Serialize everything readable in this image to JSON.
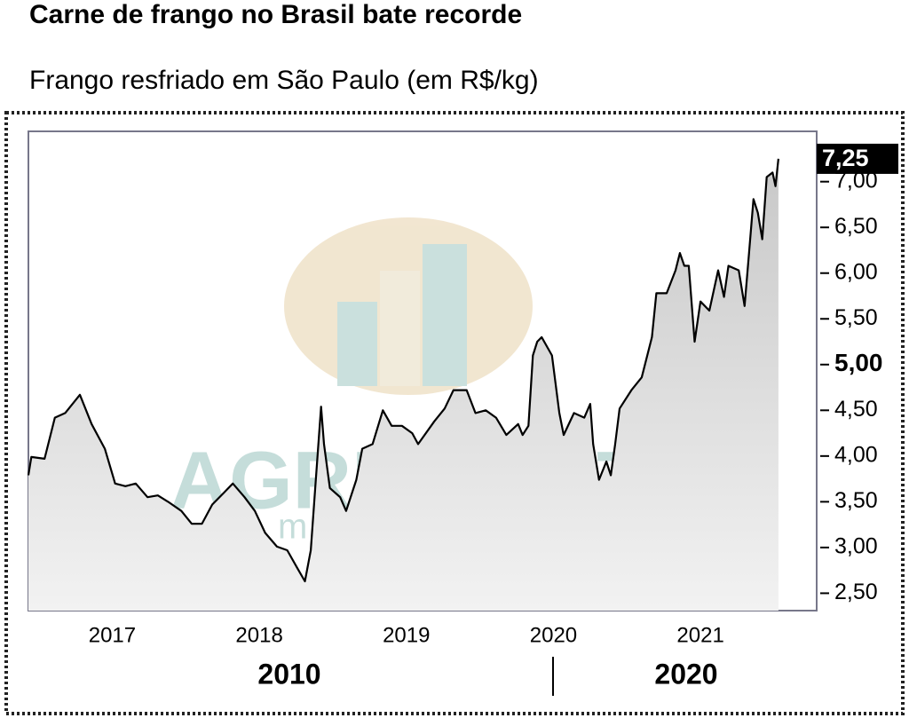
{
  "chart_data": {
    "type": "area",
    "title": "Carne de frango no Brasil bate recorde",
    "subtitle": "Frango resfriado em São Paulo (em R$/kg)",
    "watermark": [
      "AGRINVEST",
      "commodities"
    ],
    "period_labels": [
      "2010",
      "2020"
    ],
    "color": "#000000",
    "x": [
      2016.43,
      2016.45,
      2016.54,
      2016.61,
      2016.68,
      2016.78,
      2016.86,
      2016.95,
      2017.02,
      2017.09,
      2017.16,
      2017.24,
      2017.31,
      2017.38,
      2017.47,
      2017.54,
      2017.61,
      2017.68,
      2017.76,
      2017.82,
      2017.9,
      2017.97,
      2018.04,
      2018.12,
      2018.19,
      2018.26,
      2018.31,
      2018.35,
      2018.38,
      2018.42,
      2018.44,
      2018.48,
      2018.55,
      2018.59,
      2018.66,
      2018.7,
      2018.77,
      2018.84,
      2018.9,
      2018.97,
      2019.04,
      2019.08,
      2019.19,
      2019.26,
      2019.32,
      2019.41,
      2019.47,
      2019.54,
      2019.61,
      2019.68,
      2019.76,
      2019.79,
      2019.83,
      2019.86,
      2019.89,
      2019.92,
      2019.99,
      2020.04,
      2020.07,
      2020.14,
      2020.21,
      2020.25,
      2020.27,
      2020.31,
      2020.36,
      2020.39,
      2020.42,
      2020.45,
      2020.53,
      2020.6,
      2020.67,
      2020.7,
      2020.77,
      2020.83,
      2020.86,
      2020.89,
      2020.92,
      2020.96,
      2021.0,
      2021.06,
      2021.12,
      2021.16,
      2021.19,
      2021.26,
      2021.3,
      2021.33,
      2021.36,
      2021.39,
      2021.42,
      2021.45,
      2021.49,
      2021.51,
      2021.53
    ],
    "values": [
      3.79,
      3.99,
      3.97,
      4.42,
      4.47,
      4.67,
      4.35,
      4.08,
      3.7,
      3.67,
      3.7,
      3.55,
      3.57,
      3.5,
      3.4,
      3.26,
      3.26,
      3.47,
      3.6,
      3.7,
      3.55,
      3.4,
      3.16,
      3.01,
      2.97,
      2.77,
      2.63,
      2.97,
      3.65,
      4.54,
      4.13,
      3.65,
      3.55,
      3.4,
      3.74,
      4.08,
      4.13,
      4.5,
      4.33,
      4.33,
      4.25,
      4.13,
      4.38,
      4.52,
      4.72,
      4.72,
      4.47,
      4.5,
      4.42,
      4.23,
      4.35,
      4.23,
      4.33,
      5.1,
      5.25,
      5.3,
      5.1,
      4.47,
      4.23,
      4.47,
      4.42,
      4.57,
      4.13,
      3.74,
      3.94,
      3.79,
      4.13,
      4.52,
      4.72,
      4.86,
      5.3,
      5.78,
      5.78,
      6.03,
      6.22,
      6.08,
      6.08,
      5.25,
      5.69,
      5.59,
      6.03,
      5.74,
      6.08,
      6.03,
      5.64,
      6.22,
      6.81,
      6.66,
      6.37,
      7.05,
      7.1,
      6.95,
      7.25
    ],
    "value_labels": [
      null,
      null,
      null,
      null,
      null,
      null,
      null,
      null,
      null,
      null,
      null,
      null,
      null,
      null,
      null,
      null,
      null,
      null,
      null,
      null,
      null,
      null,
      null,
      null,
      null,
      null,
      null,
      null,
      null,
      null,
      null,
      null,
      null,
      null,
      null,
      null,
      null,
      null,
      null,
      null,
      null,
      null,
      null,
      null,
      null,
      null,
      null,
      null,
      null,
      null,
      null,
      null,
      null,
      null,
      null,
      null,
      null,
      null,
      null,
      null,
      null,
      null,
      null,
      null,
      null,
      null,
      null,
      null,
      null,
      null,
      null,
      null,
      null,
      null,
      null,
      null,
      null,
      null,
      null,
      null,
      null,
      null,
      null,
      null,
      null,
      null,
      null,
      null,
      null,
      null,
      null,
      null,
      "7,25"
    ],
    "xlim": [
      2016.43,
      2021.79
    ],
    "xticks": [
      2017,
      2018,
      2019,
      2020,
      2021
    ],
    "ylim": [
      2.31,
      7.55
    ],
    "yticks": [
      {
        "value": 2.5,
        "label": "2,50"
      },
      {
        "value": 3,
        "label": "3,00"
      },
      {
        "value": 3.5,
        "label": "3,50"
      },
      {
        "value": 4,
        "label": "4,00"
      },
      {
        "value": 4.5,
        "label": "4,50"
      },
      {
        "value": 5,
        "label": "5,00"
      },
      {
        "value": 5.5,
        "label": "5,50"
      },
      {
        "value": 6,
        "label": "6,00"
      },
      {
        "value": 6.5,
        "label": "6,50"
      },
      {
        "value": 7,
        "label": "7,00"
      }
    ],
    "highlight_ytick": 5
  }
}
